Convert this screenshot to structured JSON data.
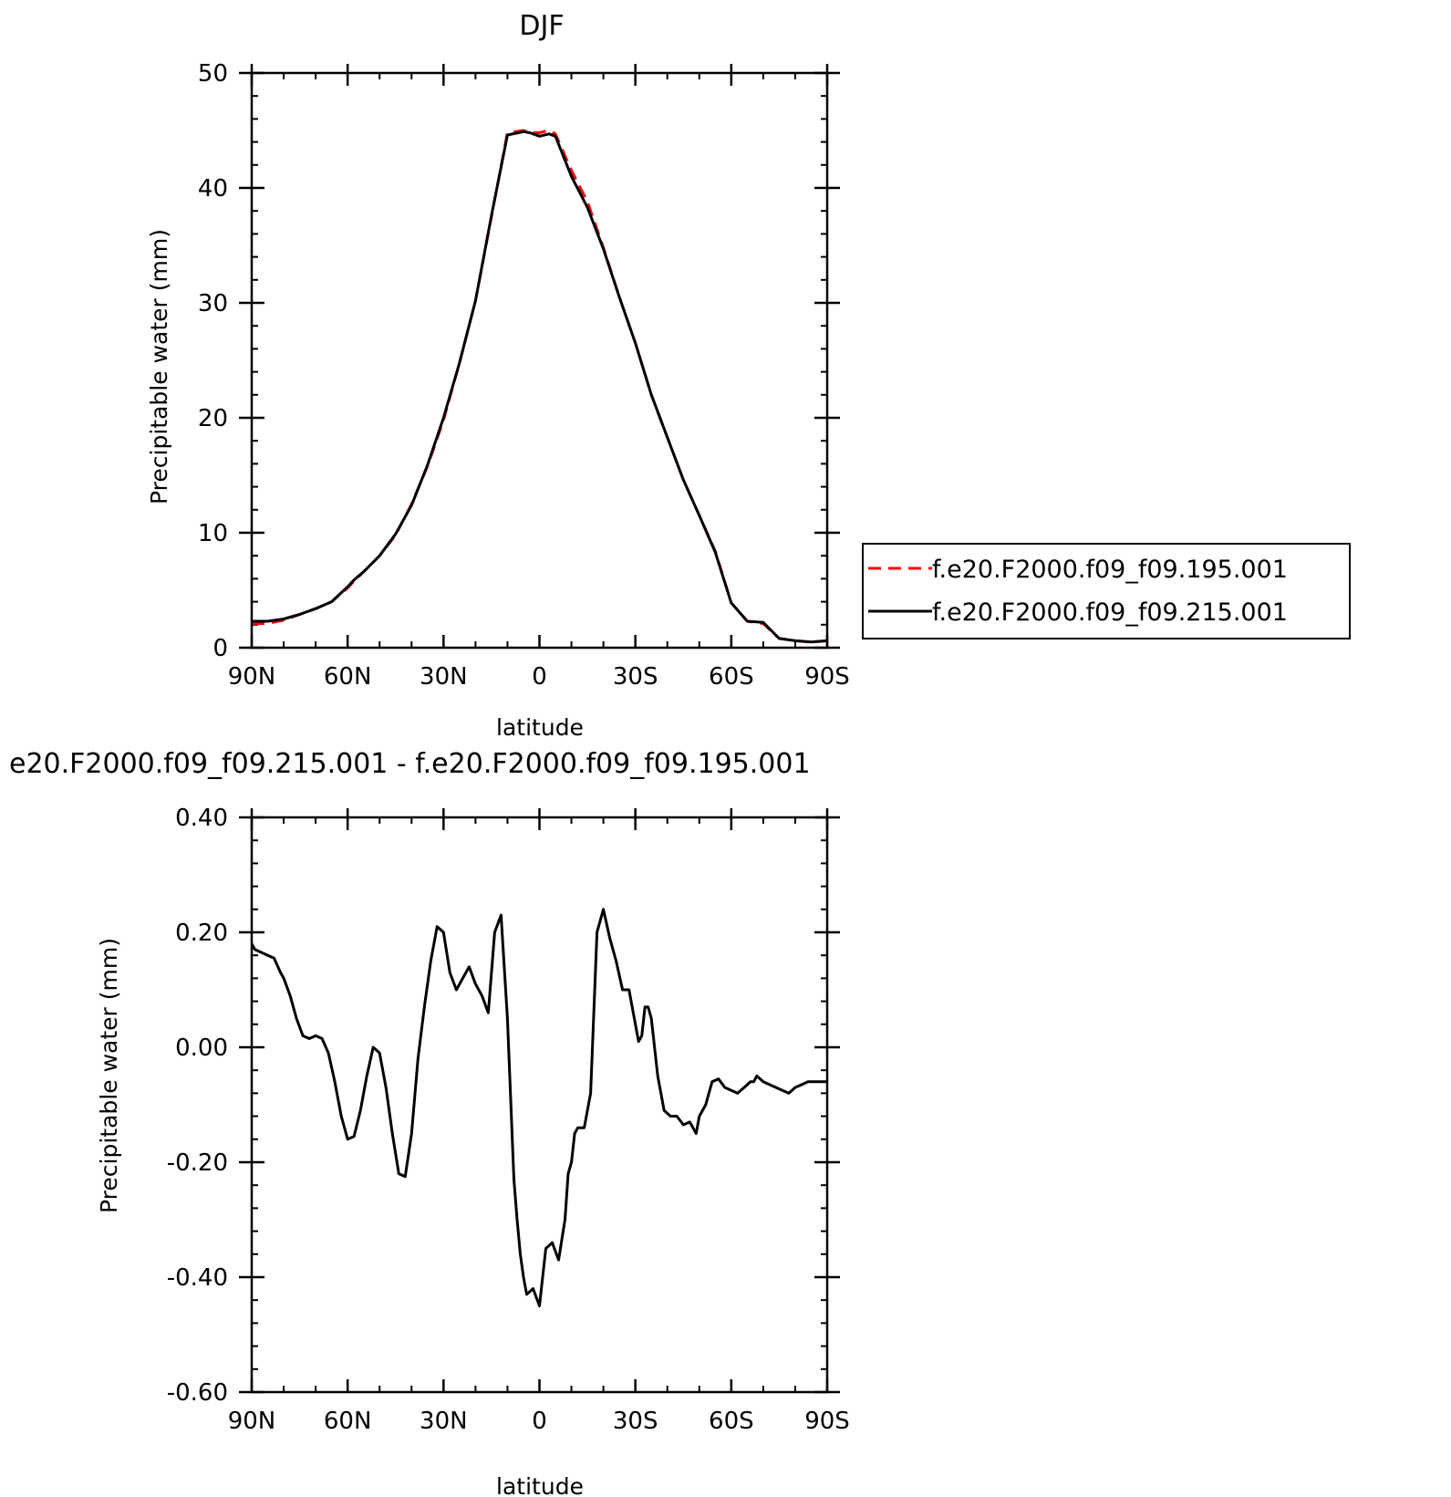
{
  "chart_data": [
    {
      "type": "line",
      "title": "DJF",
      "xlabel": "latitude",
      "ylabel": "Precipitable water (mm)",
      "xlim": [
        90,
        -90
      ],
      "ylim": [
        0,
        50
      ],
      "xticks": [
        90,
        60,
        30,
        0,
        -30,
        -60,
        -90
      ],
      "xtick_labels": [
        "90N",
        "60N",
        "30N",
        "0",
        "30S",
        "60S",
        "90S"
      ],
      "yticks": [
        0,
        10,
        20,
        30,
        40,
        50
      ],
      "ytick_labels": [
        "0",
        "10",
        "20",
        "30",
        "40",
        "50"
      ],
      "grid": false,
      "legend_placement": "right",
      "series": [
        {
          "name": "f.e20.F2000.f09_f09.195.001",
          "color": "#ff0000",
          "dash": "dashed",
          "x": [
            90,
            85,
            80,
            75,
            70,
            65,
            60,
            58,
            55,
            50,
            45,
            40,
            35,
            30,
            25,
            20,
            15,
            10,
            5,
            3,
            0,
            -3,
            -5,
            -10,
            -15,
            -20,
            -25,
            -30,
            -35,
            -40,
            -45,
            -50,
            -55,
            -60,
            -65,
            -70,
            -75,
            -80,
            -85,
            -90
          ],
          "y": [
            2.1,
            2.1,
            2.4,
            2.9,
            3.4,
            4.0,
            5.2,
            5.8,
            6.6,
            8.0,
            9.8,
            12.5,
            15.8,
            19.8,
            24.8,
            30.2,
            37.5,
            44.8,
            45.0,
            44.8,
            44.8,
            45.0,
            44.7,
            41.5,
            38.8,
            34.8,
            30.5,
            26.5,
            22.0,
            18.3,
            14.6,
            11.5,
            8.4,
            3.9,
            2.3,
            2.1,
            0.8,
            0.6,
            0.5,
            0.6
          ]
        },
        {
          "name": "f.e20.F2000.f09_f09.215.001",
          "color": "#000000",
          "dash": "solid",
          "x": [
            90,
            85,
            80,
            75,
            70,
            65,
            60,
            58,
            55,
            50,
            45,
            40,
            35,
            30,
            25,
            20,
            15,
            10,
            5,
            3,
            0,
            -3,
            -5,
            -10,
            -15,
            -20,
            -25,
            -30,
            -35,
            -40,
            -45,
            -50,
            -55,
            -60,
            -65,
            -70,
            -75,
            -80,
            -85,
            -90
          ],
          "y": [
            2.3,
            2.3,
            2.5,
            2.9,
            3.4,
            4.0,
            5.3,
            5.9,
            6.6,
            8.0,
            9.9,
            12.4,
            15.9,
            20.0,
            24.8,
            30.2,
            37.6,
            44.6,
            44.9,
            44.8,
            44.5,
            44.7,
            44.5,
            41.0,
            38.3,
            34.7,
            30.5,
            26.5,
            22.0,
            18.3,
            14.6,
            11.5,
            8.3,
            3.9,
            2.3,
            2.2,
            0.8,
            0.6,
            0.5,
            0.6
          ]
        }
      ]
    },
    {
      "type": "line",
      "title": "e20.F2000.f09_f09.215.001 - f.e20.F2000.f09_f09.195.001",
      "xlabel": "latitude",
      "ylabel": "Precipitable water (mm)",
      "xlim": [
        90,
        -90
      ],
      "ylim": [
        -0.6,
        0.4
      ],
      "xticks": [
        90,
        60,
        30,
        0,
        -30,
        -60,
        -90
      ],
      "xtick_labels": [
        "90N",
        "60N",
        "30N",
        "0",
        "30S",
        "60S",
        "90S"
      ],
      "yticks": [
        -0.6,
        -0.4,
        -0.2,
        0.0,
        0.2,
        0.4
      ],
      "ytick_labels": [
        "-0.60",
        "-0.40",
        "-0.20",
        "0.00",
        "0.20",
        "0.40"
      ],
      "grid": false,
      "series": [
        {
          "color": "#000000",
          "dash": "solid",
          "x": [
            90,
            89,
            87,
            85,
            83,
            81,
            80,
            78,
            76,
            74,
            72,
            70,
            68,
            66,
            64,
            62,
            60,
            58,
            56,
            54,
            52,
            50,
            48,
            46,
            44,
            42,
            40,
            38,
            36,
            34,
            32,
            30,
            28,
            26,
            24,
            22,
            20,
            18,
            16,
            14,
            12,
            10,
            8,
            7,
            6,
            5,
            4,
            2,
            0,
            -2,
            -4,
            -6,
            -8,
            -9,
            -10,
            -11,
            -12,
            -14,
            -16,
            -18,
            -20,
            -22,
            -24,
            -26,
            -28,
            -29,
            -30,
            -31,
            -32,
            -33,
            -34,
            -35,
            -37,
            -39,
            -41,
            -43,
            -45,
            -47,
            -49,
            -50,
            -52,
            -54,
            -56,
            -58,
            -60,
            -62,
            -64,
            -66,
            -67,
            -68,
            -70,
            -72,
            -74,
            -76,
            -78,
            -80,
            -82,
            -84,
            -86,
            -88,
            -90
          ],
          "y": [
            0.18,
            0.17,
            0.165,
            0.16,
            0.155,
            0.13,
            0.12,
            0.09,
            0.05,
            0.02,
            0.015,
            0.02,
            0.015,
            -0.01,
            -0.06,
            -0.12,
            -0.16,
            -0.155,
            -0.11,
            -0.05,
            0.0,
            -0.01,
            -0.07,
            -0.15,
            -0.22,
            -0.225,
            -0.15,
            -0.02,
            0.07,
            0.15,
            0.21,
            0.2,
            0.13,
            0.1,
            0.12,
            0.14,
            0.11,
            0.09,
            0.06,
            0.2,
            0.23,
            0.05,
            -0.23,
            -0.3,
            -0.36,
            -0.4,
            -0.43,
            -0.42,
            -0.45,
            -0.35,
            -0.34,
            -0.37,
            -0.3,
            -0.22,
            -0.2,
            -0.15,
            -0.14,
            -0.14,
            -0.08,
            0.2,
            0.24,
            0.19,
            0.15,
            0.1,
            0.1,
            0.07,
            0.04,
            0.01,
            0.02,
            0.07,
            0.07,
            0.05,
            -0.05,
            -0.11,
            -0.12,
            -0.12,
            -0.135,
            -0.13,
            -0.15,
            -0.12,
            -0.1,
            -0.06,
            -0.055,
            -0.07,
            -0.075,
            -0.08,
            -0.07,
            -0.06,
            -0.06,
            -0.05,
            -0.06,
            -0.065,
            -0.07,
            -0.075,
            -0.08,
            -0.07,
            -0.065,
            -0.06,
            -0.06,
            -0.06,
            -0.06
          ]
        }
      ]
    }
  ]
}
